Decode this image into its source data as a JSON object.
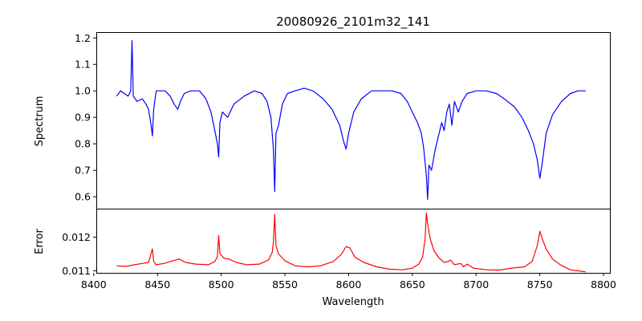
{
  "chart_data": {
    "type": "line",
    "title": "20080926_2101m32_141",
    "xlabel": "Wavelength",
    "xlim": [
      8402,
      8805
    ],
    "xticks": [
      8400,
      8450,
      8500,
      8550,
      8600,
      8650,
      8700,
      8750,
      8800
    ],
    "grid": false,
    "panels": [
      {
        "ylabel": "Spectrum",
        "ylim": [
          0.555,
          1.222
        ],
        "yticks": [
          0.6,
          0.7,
          0.8,
          0.9,
          1.0,
          1.1,
          1.2
        ],
        "ytick_labels": [
          "0.6",
          "0.7",
          "0.8",
          "0.9",
          "1.0",
          "1.1",
          "1.2"
        ],
        "series": [
          {
            "color": "#0000ff",
            "x": [
              8418,
              8421,
              8424,
              8427,
              8429,
              8430,
              8431,
              8434,
              8438,
              8441,
              8443,
              8445,
              8446,
              8447,
              8449,
              8452,
              8456,
              8460,
              8463,
              8466,
              8468,
              8471,
              8476,
              8483,
              8488,
              8492,
              8495,
              8497,
              8498,
              8499,
              8501,
              8505,
              8510,
              8518,
              8526,
              8532,
              8536,
              8539,
              8541,
              8542,
              8543,
              8545,
              8548,
              8552,
              8558,
              8565,
              8572,
              8580,
              8587,
              8593,
              8596,
              8598,
              8600,
              8604,
              8610,
              8618,
              8626,
              8634,
              8641,
              8646,
              8650,
              8654,
              8657,
              8659,
              8661,
              8662,
              8663,
              8665,
              8668,
              8671,
              8673,
              8675,
              8677,
              8679,
              8681,
              8683,
              8686,
              8689,
              8693,
              8700,
              8708,
              8716,
              8722,
              8730,
              8736,
              8741,
              8745,
              8748,
              8750,
              8752,
              8755,
              8760,
              8767,
              8774,
              8780,
              8786
            ],
            "y": [
              0.98,
              1.0,
              0.99,
              0.98,
              1.0,
              1.19,
              0.98,
              0.96,
              0.97,
              0.95,
              0.93,
              0.87,
              0.83,
              0.93,
              1.0,
              1.0,
              1.0,
              0.98,
              0.95,
              0.93,
              0.96,
              0.99,
              1.0,
              1.0,
              0.97,
              0.92,
              0.85,
              0.8,
              0.75,
              0.88,
              0.92,
              0.9,
              0.95,
              0.98,
              1.0,
              0.99,
              0.96,
              0.9,
              0.78,
              0.62,
              0.84,
              0.87,
              0.95,
              0.99,
              1.0,
              1.01,
              1.0,
              0.97,
              0.93,
              0.87,
              0.81,
              0.78,
              0.84,
              0.92,
              0.97,
              1.0,
              1.0,
              1.0,
              0.99,
              0.96,
              0.92,
              0.88,
              0.84,
              0.78,
              0.68,
              0.59,
              0.72,
              0.7,
              0.78,
              0.84,
              0.88,
              0.85,
              0.92,
              0.95,
              0.87,
              0.96,
              0.92,
              0.96,
              0.99,
              1.0,
              1.0,
              0.99,
              0.97,
              0.94,
              0.9,
              0.85,
              0.8,
              0.74,
              0.67,
              0.73,
              0.84,
              0.91,
              0.96,
              0.99,
              1.0,
              1.0
            ]
          }
        ]
      },
      {
        "ylabel": "Error",
        "ylim": [
          0.01094,
          0.01285
        ],
        "yticks": [
          0.011,
          0.012
        ],
        "ytick_labels": [
          "0.011",
          "0.012"
        ],
        "series": [
          {
            "color": "#ff0000",
            "x": [
              8418,
              8425,
              8432,
              8438,
              8443,
              8446,
              8447,
              8449,
              8455,
              8462,
              8467,
              8472,
              8480,
              8490,
              8495,
              8497,
              8498,
              8499,
              8502,
              8506,
              8512,
              8520,
              8530,
              8537,
              8540,
              8541,
              8542,
              8543,
              8545,
              8550,
              8558,
              8568,
              8578,
              8588,
              8594,
              8598,
              8601,
              8605,
              8612,
              8622,
              8632,
              8642,
              8650,
              8655,
              8658,
              8660,
              8661,
              8662,
              8664,
              8667,
              8671,
              8675,
              8678,
              8680,
              8683,
              8688,
              8690,
              8693,
              8698,
              8708,
              8718,
              8728,
              8738,
              8744,
              8748,
              8750,
              8752,
              8755,
              8760,
              8766,
              8774,
              8780,
              8786
            ],
            "y": [
              0.01115,
              0.01113,
              0.01118,
              0.01122,
              0.01125,
              0.01165,
              0.01128,
              0.01118,
              0.01122,
              0.0113,
              0.01135,
              0.01125,
              0.0112,
              0.01118,
              0.01128,
              0.01142,
              0.01205,
              0.01152,
              0.01138,
              0.01135,
              0.01125,
              0.01118,
              0.0112,
              0.01132,
              0.01155,
              0.01185,
              0.01268,
              0.01175,
              0.0115,
              0.0113,
              0.01115,
              0.01112,
              0.01115,
              0.01128,
              0.01148,
              0.01172,
              0.01168,
              0.0114,
              0.01125,
              0.01112,
              0.01105,
              0.01103,
              0.01108,
              0.0112,
              0.0114,
              0.01195,
              0.01272,
              0.0124,
              0.01195,
              0.0116,
              0.01138,
              0.01125,
              0.01128,
              0.01132,
              0.01118,
              0.01122,
              0.01112,
              0.0112,
              0.01108,
              0.01103,
              0.01102,
              0.01108,
              0.01112,
              0.01128,
              0.01175,
              0.01218,
              0.01195,
              0.01165,
              0.01135,
              0.01118,
              0.01103,
              0.011,
              0.01097
            ]
          }
        ]
      }
    ]
  }
}
